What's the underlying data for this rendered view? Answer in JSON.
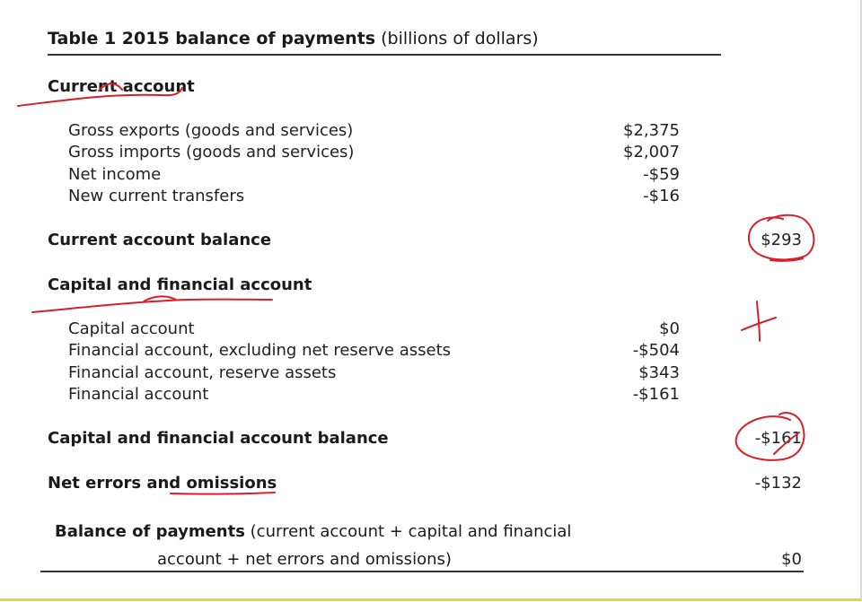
{
  "table": {
    "title_bold": "Table 1 2015 balance of payments",
    "title_unit": "(billions of dollars)",
    "current_account": {
      "heading": "Current account",
      "items": [
        {
          "label": "Gross exports (goods and services)",
          "value": "$2,375"
        },
        {
          "label": "Gross imports (goods and services)",
          "value": "$2,007"
        },
        {
          "label": "Net income",
          "value": "-$59"
        },
        {
          "label": "New current transfers",
          "value": "-$16"
        }
      ],
      "balance_label": "Current account balance",
      "balance_value": "$293"
    },
    "capital_financial": {
      "heading": "Capital and financial account",
      "items": [
        {
          "label": "Capital account",
          "value": "$0"
        },
        {
          "label": "Financial account, excluding net reserve assets",
          "value": "-$504"
        },
        {
          "label": "Financial account, reserve assets",
          "value": "$343"
        },
        {
          "label": "Financial account",
          "value": "-$161"
        }
      ],
      "balance_label": "Capital and financial account balance",
      "balance_value": "-$161"
    },
    "errors": {
      "label": "Net errors and omissions",
      "value": "-$132"
    },
    "bop": {
      "label_bold": "Balance of payments",
      "label_rest": "(current account + capital and financial",
      "label_line2": "account + net errors and omissions)",
      "value": "$0"
    }
  },
  "annotations": {
    "ink_color": "#d6202a",
    "marks": [
      "underline-current-account",
      "circle-293",
      "underline-capital-financial",
      "plus-sign",
      "circle-minus-161",
      "underline-omissions"
    ]
  }
}
